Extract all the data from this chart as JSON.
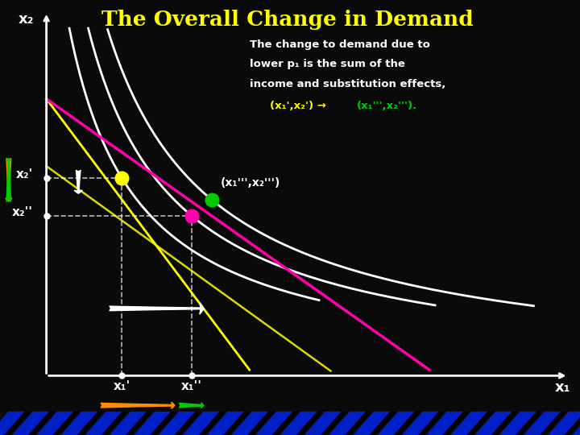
{
  "title": "The Overall Change in Demand",
  "title_color": "#FFFF00",
  "bg_color": "#0a0a0a",
  "label_x2": "x₂",
  "label_x1": "x₁",
  "label_x2prime": "x₂'",
  "label_x2dprime": "x₂''",
  "label_x1prime": "x₁'",
  "label_x1dprime": "x₁''",
  "label_bundle1": "(x₁''',x₂''')",
  "point1_color": "#FFFF00",
  "point2_color": "#00CC00",
  "point3_color": "#FF00AA",
  "indiff_color": "#FFFFFF",
  "budget1_color": "#FFFF00",
  "budget2_color": "#FF00AA",
  "dashed_color": "#FFFFFF",
  "arrow_orange_color": "#FF8C00",
  "arrow_green_color": "#00CC00"
}
